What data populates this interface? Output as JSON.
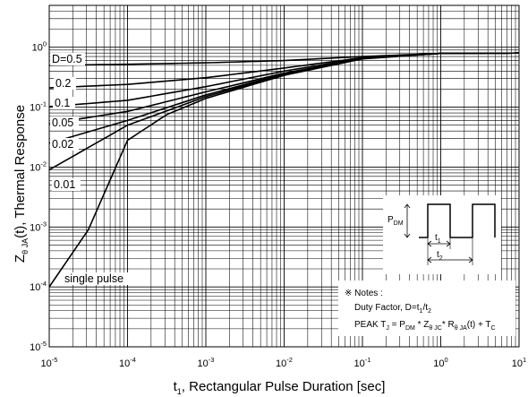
{
  "chart_data": {
    "type": "line",
    "x_scale": "log",
    "y_scale": "log",
    "xlim": [
      1e-05,
      10
    ],
    "ylim": [
      1e-05,
      5
    ],
    "grid": true,
    "xlabel_main": "t",
    "xlabel_sub": "1",
    "xlabel_rest": ", Rectangular Pulse Duration [sec]",
    "ylabel_prefix": "Z",
    "ylabel_sub": "θ JA",
    "ylabel_rest": "(t), Thermal Response",
    "x_ticks": [
      {
        "base": "10",
        "exp": "-5",
        "value": 1e-05
      },
      {
        "base": "10",
        "exp": "-4",
        "value": 0.0001
      },
      {
        "base": "10",
        "exp": "-3",
        "value": 0.001
      },
      {
        "base": "10",
        "exp": "-2",
        "value": 0.01
      },
      {
        "base": "10",
        "exp": "-1",
        "value": 0.1
      },
      {
        "base": "10",
        "exp": "0",
        "value": 1
      },
      {
        "base": "10",
        "exp": "1",
        "value": 10
      }
    ],
    "y_ticks": [
      {
        "base": "10",
        "exp": "-5",
        "value": 1e-05
      },
      {
        "base": "10",
        "exp": "-4",
        "value": 0.0001
      },
      {
        "base": "10",
        "exp": "-3",
        "value": 0.001
      },
      {
        "base": "10",
        "exp": "-2",
        "value": 0.01
      },
      {
        "base": "10",
        "exp": "-1",
        "value": 0.1
      },
      {
        "base": "10",
        "exp": "0",
        "value": 1
      }
    ],
    "series": [
      {
        "name": "D=0.5",
        "x": [
          1e-05,
          0.0001,
          0.001,
          0.01,
          0.1,
          1,
          10
        ],
        "y": [
          0.5,
          0.52,
          0.55,
          0.6,
          0.7,
          0.79,
          0.8
        ]
      },
      {
        "name": "0.2",
        "x": [
          1e-05,
          0.0001,
          0.001,
          0.01,
          0.1,
          1,
          10
        ],
        "y": [
          0.21,
          0.24,
          0.31,
          0.45,
          0.67,
          0.79,
          0.8
        ]
      },
      {
        "name": "0.1",
        "x": [
          1e-05,
          0.0001,
          0.001,
          0.01,
          0.1,
          1,
          10
        ],
        "y": [
          0.102,
          0.13,
          0.22,
          0.4,
          0.66,
          0.79,
          0.8
        ]
      },
      {
        "name": "0.05",
        "x": [
          1e-05,
          0.0001,
          0.001,
          0.01,
          0.1,
          1,
          10
        ],
        "y": [
          0.053,
          0.085,
          0.18,
          0.37,
          0.65,
          0.79,
          0.8
        ]
      },
      {
        "name": "0.02",
        "x": [
          1e-05,
          0.0001,
          0.001,
          0.01,
          0.1,
          1,
          10
        ],
        "y": [
          0.025,
          0.06,
          0.16,
          0.36,
          0.65,
          0.79,
          0.8
        ]
      },
      {
        "name": "0.01",
        "x": [
          1e-05,
          0.0001,
          0.001,
          0.01,
          0.1,
          1,
          10
        ],
        "y": [
          0.009,
          0.05,
          0.15,
          0.35,
          0.65,
          0.79,
          0.8
        ]
      },
      {
        "name": "single pulse",
        "x": [
          1e-05,
          3.16e-05,
          0.0001,
          0.000316,
          0.001,
          0.01,
          0.1,
          1,
          10
        ],
        "y": [
          0.0001,
          0.0009,
          0.028,
          0.075,
          0.14,
          0.34,
          0.64,
          0.79,
          0.8
        ]
      }
    ],
    "notes": {
      "title": "※ Notes :",
      "line1_prefix": "Duty Factor, D=t",
      "line1_sub1": "1",
      "line1_mid": "/t",
      "line1_sub2": "2",
      "line2_a": "PEAK T",
      "line2_sub_j": "J",
      "line2_b": " = P",
      "line2_sub_dm": "DM",
      "line2_c": " * Z",
      "line2_sub_zjc": "θ JC",
      "line2_d": "* R",
      "line2_sub_rja": "θ JA",
      "line2_e": "(t) + T",
      "line2_sub_c": "C"
    },
    "pulse_diagram": {
      "p_label": "P",
      "p_sub": "DM",
      "t1_label": "t",
      "t1_sub": "1",
      "t2_label": "t",
      "t2_sub": "2"
    }
  }
}
